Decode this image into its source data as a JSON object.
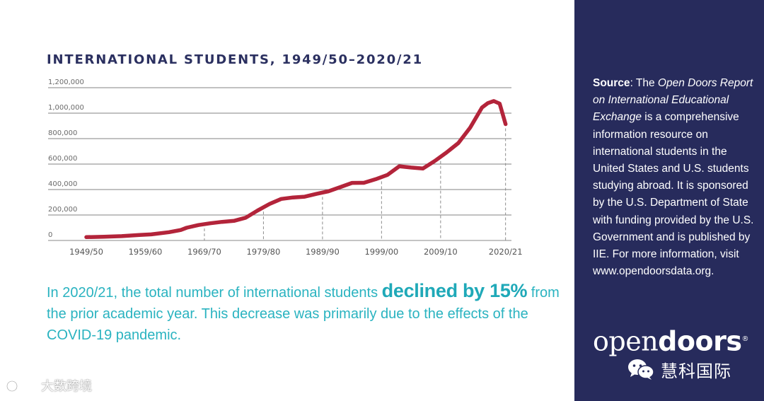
{
  "chart_title": "INTERNATIONAL STUDENTS, 1949/50–2020/21",
  "chart_data": {
    "type": "line",
    "title": "INTERNATIONAL STUDENTS, 1949/50–2020/21",
    "xlabel": "",
    "ylabel": "",
    "x_ticks": [
      "1949/50",
      "1959/60",
      "1969/70",
      "1979/80",
      "1989/90",
      "1999/00",
      "2009/10",
      "2020/21"
    ],
    "y_ticks": [
      "0",
      "200,000",
      "400,000",
      "600,000",
      "800,000",
      "1,000,000",
      "1,200,000"
    ],
    "ylim": [
      0,
      1200000
    ],
    "xlim": [
      1949,
      2021
    ],
    "grid": true,
    "series": [
      {
        "color": "#b3243a",
        "x": [
          1949,
          1952,
          1955,
          1958,
          1960,
          1963,
          1965,
          1966,
          1968,
          1970,
          1972,
          1974,
          1976,
          1978,
          1980,
          1982,
          1984,
          1986,
          1988,
          1990,
          1992,
          1994,
          1996,
          1998,
          2000,
          2002,
          2004,
          2006,
          2008,
          2010,
          2012,
          2014,
          2016,
          2017,
          2018,
          2019,
          2020
        ],
        "y": [
          26000,
          29000,
          34000,
          43000,
          48000,
          65000,
          82000,
          100000,
          121000,
          135000,
          146000,
          154000,
          179000,
          235000,
          286000,
          326000,
          338000,
          344000,
          366000,
          386000,
          419000,
          452000,
          453000,
          481000,
          515000,
          583000,
          573000,
          565000,
          624000,
          691000,
          765000,
          886000,
          1044000,
          1079000,
          1095000,
          1075000,
          914000
        ]
      }
    ],
    "drop_lines_at": [
      1969,
      1979,
      1989,
      1999,
      2009,
      2020
    ]
  },
  "summary": {
    "before": "In 2020/21, the total number of international students ",
    "emphasis": "declined by 15%",
    "after": " from the prior academic year. This decrease was primarily due to the effects of the COVID-19 pandemic."
  },
  "source": {
    "label": "Source",
    "pre": ": The ",
    "italic": "Open Doors Report on International Educational Exchange",
    "post": " is a comprehensive information resource on international students in the United States and U.S. students studying abroad. It is sponsored by the U.S. Department of State with funding provided by the U.S. Government and is published by IIE. For more information, visit www.opendoorsdata.org."
  },
  "logo": {
    "light": "open",
    "heavy": "doors",
    "mark": "®",
    "cn": "慧科国际"
  },
  "watermark": {
    "text": "大数跨境"
  },
  "colors": {
    "line": "#b3243a",
    "sidebar": "#272b5c",
    "title": "#2b3060",
    "accent": "#2ab3c0"
  }
}
